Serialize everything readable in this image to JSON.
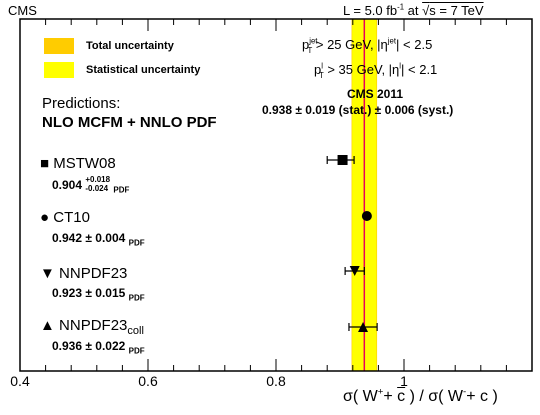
{
  "header": {
    "left": "CMS",
    "lumi": "L = 5.0 fb",
    "lumi_sup": "-1",
    "lumi_at": " at ",
    "sqrt": "√",
    "energy": "s = 7 TeV"
  },
  "legend": {
    "total": "Total uncertainty",
    "stat": "Statistical uncertainty"
  },
  "cuts": {
    "jet_p": "p",
    "jet_sup": "jet",
    "jet_sub": "T",
    "jet_rest": " > 25 GeV, |η",
    "jet_eta_sup": "jet",
    "jet_end": "| < 2.5",
    "lep_p": "p",
    "lep_sup": "l",
    "lep_sub": "T",
    "lep_rest": " > 35 GeV, |η",
    "lep_eta_sup": "l",
    "lep_end": "| < 2.1"
  },
  "predictions_title": "Predictions:",
  "predictions_subtitle": "NLO MCFM + NNLO PDF",
  "measurement": {
    "label": "CMS 2011",
    "text": "0.938 ± 0.019 (stat.) ± 0.006 (syst.)",
    "value": 0.938,
    "stat": 0.019,
    "syst": 0.006,
    "total": 0.02
  },
  "predictions": [
    {
      "name": "MSTW08",
      "symbol": "■",
      "value_text": "0.904",
      "err_up": "+0.018",
      "err_dn": "-0.024",
      "pdf": "PDF"
    },
    {
      "name": "CT10",
      "symbol": "●",
      "value_text": "0.942 ± 0.004",
      "pdf": "PDF"
    },
    {
      "name": "NNPDF23",
      "symbol": "▼",
      "value_text": "0.923 ± 0.015",
      "pdf": "PDF"
    },
    {
      "name": "NNPDF23",
      "name_sub": "coll",
      "symbol": "▲",
      "value_text": "0.936 ± 0.022",
      "pdf": "PDF"
    }
  ],
  "axis": {
    "xlabel_left": "σ( W",
    "xlabel_sup1": "+",
    "xlabel_mid": "+ ",
    "xlabel_cbar": "c",
    "xlabel_close": " ) / σ( W",
    "xlabel_sup2": "-",
    "xlabel_end": "+ c )"
  },
  "colors": {
    "total_band": "#ffcc00",
    "stat_band": "#ffff00",
    "central_line": "#e8005a"
  },
  "chart_data": {
    "type": "scatter",
    "xlim": [
      0.4,
      1.2
    ],
    "xticks": [
      0.4,
      0.6,
      0.8,
      1.0
    ],
    "xtick_labels": [
      "0.4",
      "0.6",
      "0.8",
      "1"
    ],
    "points": [
      {
        "label": "MSTW08",
        "x": 0.904,
        "err_plus": 0.018,
        "err_minus": 0.024,
        "marker": "square"
      },
      {
        "label": "CT10",
        "x": 0.942,
        "err_plus": 0.004,
        "err_minus": 0.004,
        "marker": "circle"
      },
      {
        "label": "NNPDF23",
        "x": 0.923,
        "err_plus": 0.015,
        "err_minus": 0.015,
        "marker": "triangle-down"
      },
      {
        "label": "NNPDF23coll",
        "x": 0.936,
        "err_plus": 0.022,
        "err_minus": 0.022,
        "marker": "triangle-up"
      }
    ],
    "measurement": {
      "label": "CMS 2011",
      "x": 0.938,
      "stat": 0.019,
      "syst": 0.006
    }
  }
}
